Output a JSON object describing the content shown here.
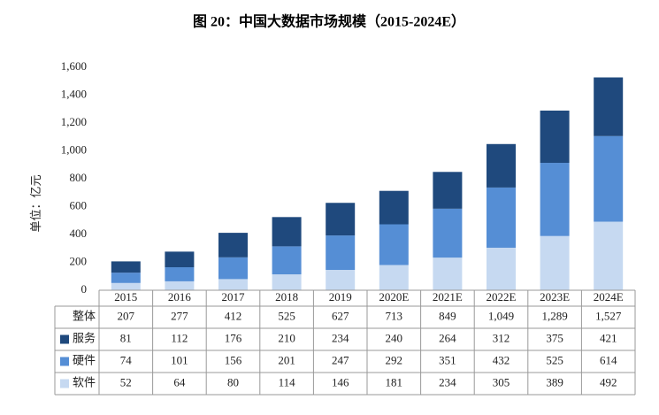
{
  "chart_data": {
    "type": "stacked-bar",
    "title": "图 20：中国大数据市场规模（2015-2024E）",
    "y_label": "单位：亿元",
    "categories": [
      "2015",
      "2016",
      "2017",
      "2018",
      "2019",
      "2020E",
      "2021E",
      "2022E",
      "2023E",
      "2024E"
    ],
    "total": {
      "name": "整体",
      "values": [
        207,
        277,
        412,
        525,
        627,
        713,
        849,
        1049,
        1289,
        1527
      ],
      "value_labels": [
        "207",
        "277",
        "412",
        "525",
        "627",
        "713",
        "849",
        "1,049",
        "1,289",
        "1,527"
      ]
    },
    "series": [
      {
        "name": "服务",
        "color": "#1f497d",
        "values": [
          81,
          112,
          176,
          210,
          234,
          240,
          264,
          312,
          375,
          421
        ]
      },
      {
        "name": "硬件",
        "color": "#558ed5",
        "values": [
          74,
          101,
          156,
          201,
          247,
          292,
          351,
          432,
          525,
          614
        ]
      },
      {
        "name": "软件",
        "color": "#c6d9f1",
        "values": [
          52,
          64,
          80,
          114,
          146,
          181,
          234,
          305,
          389,
          492
        ]
      }
    ],
    "ylim": [
      0,
      1600
    ],
    "yticks": [
      0,
      200,
      400,
      600,
      800,
      {
        "value": 1000,
        "label": "1,000"
      },
      {
        "value": 1200,
        "label": "1,200"
      },
      {
        "value": 1400,
        "label": "1,400"
      },
      {
        "value": 1600,
        "label": "1,600"
      }
    ]
  }
}
